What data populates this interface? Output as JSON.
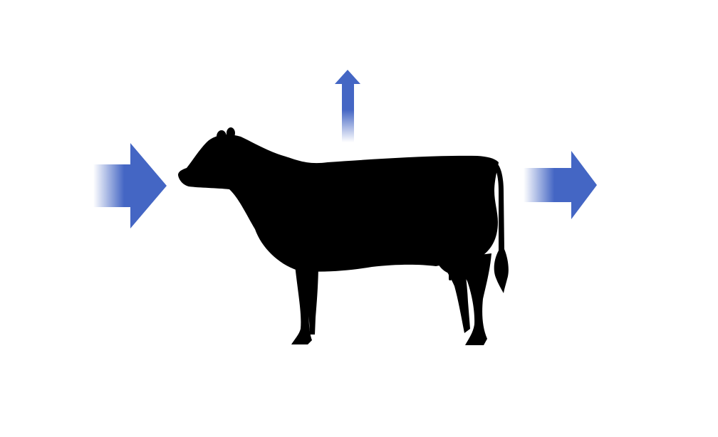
{
  "diagram": {
    "subject_icon": "cow-silhouette-icon",
    "flows": [
      {
        "role": "input",
        "icon": "arrow-right-icon"
      },
      {
        "role": "emission",
        "icon": "arrow-up-icon"
      },
      {
        "role": "output",
        "icon": "arrow-right-icon"
      }
    ],
    "colors": {
      "arrow": "#4466c4",
      "arrow_fade": "#ffffff",
      "silhouette": "#000000",
      "background": "#ffffff"
    }
  }
}
